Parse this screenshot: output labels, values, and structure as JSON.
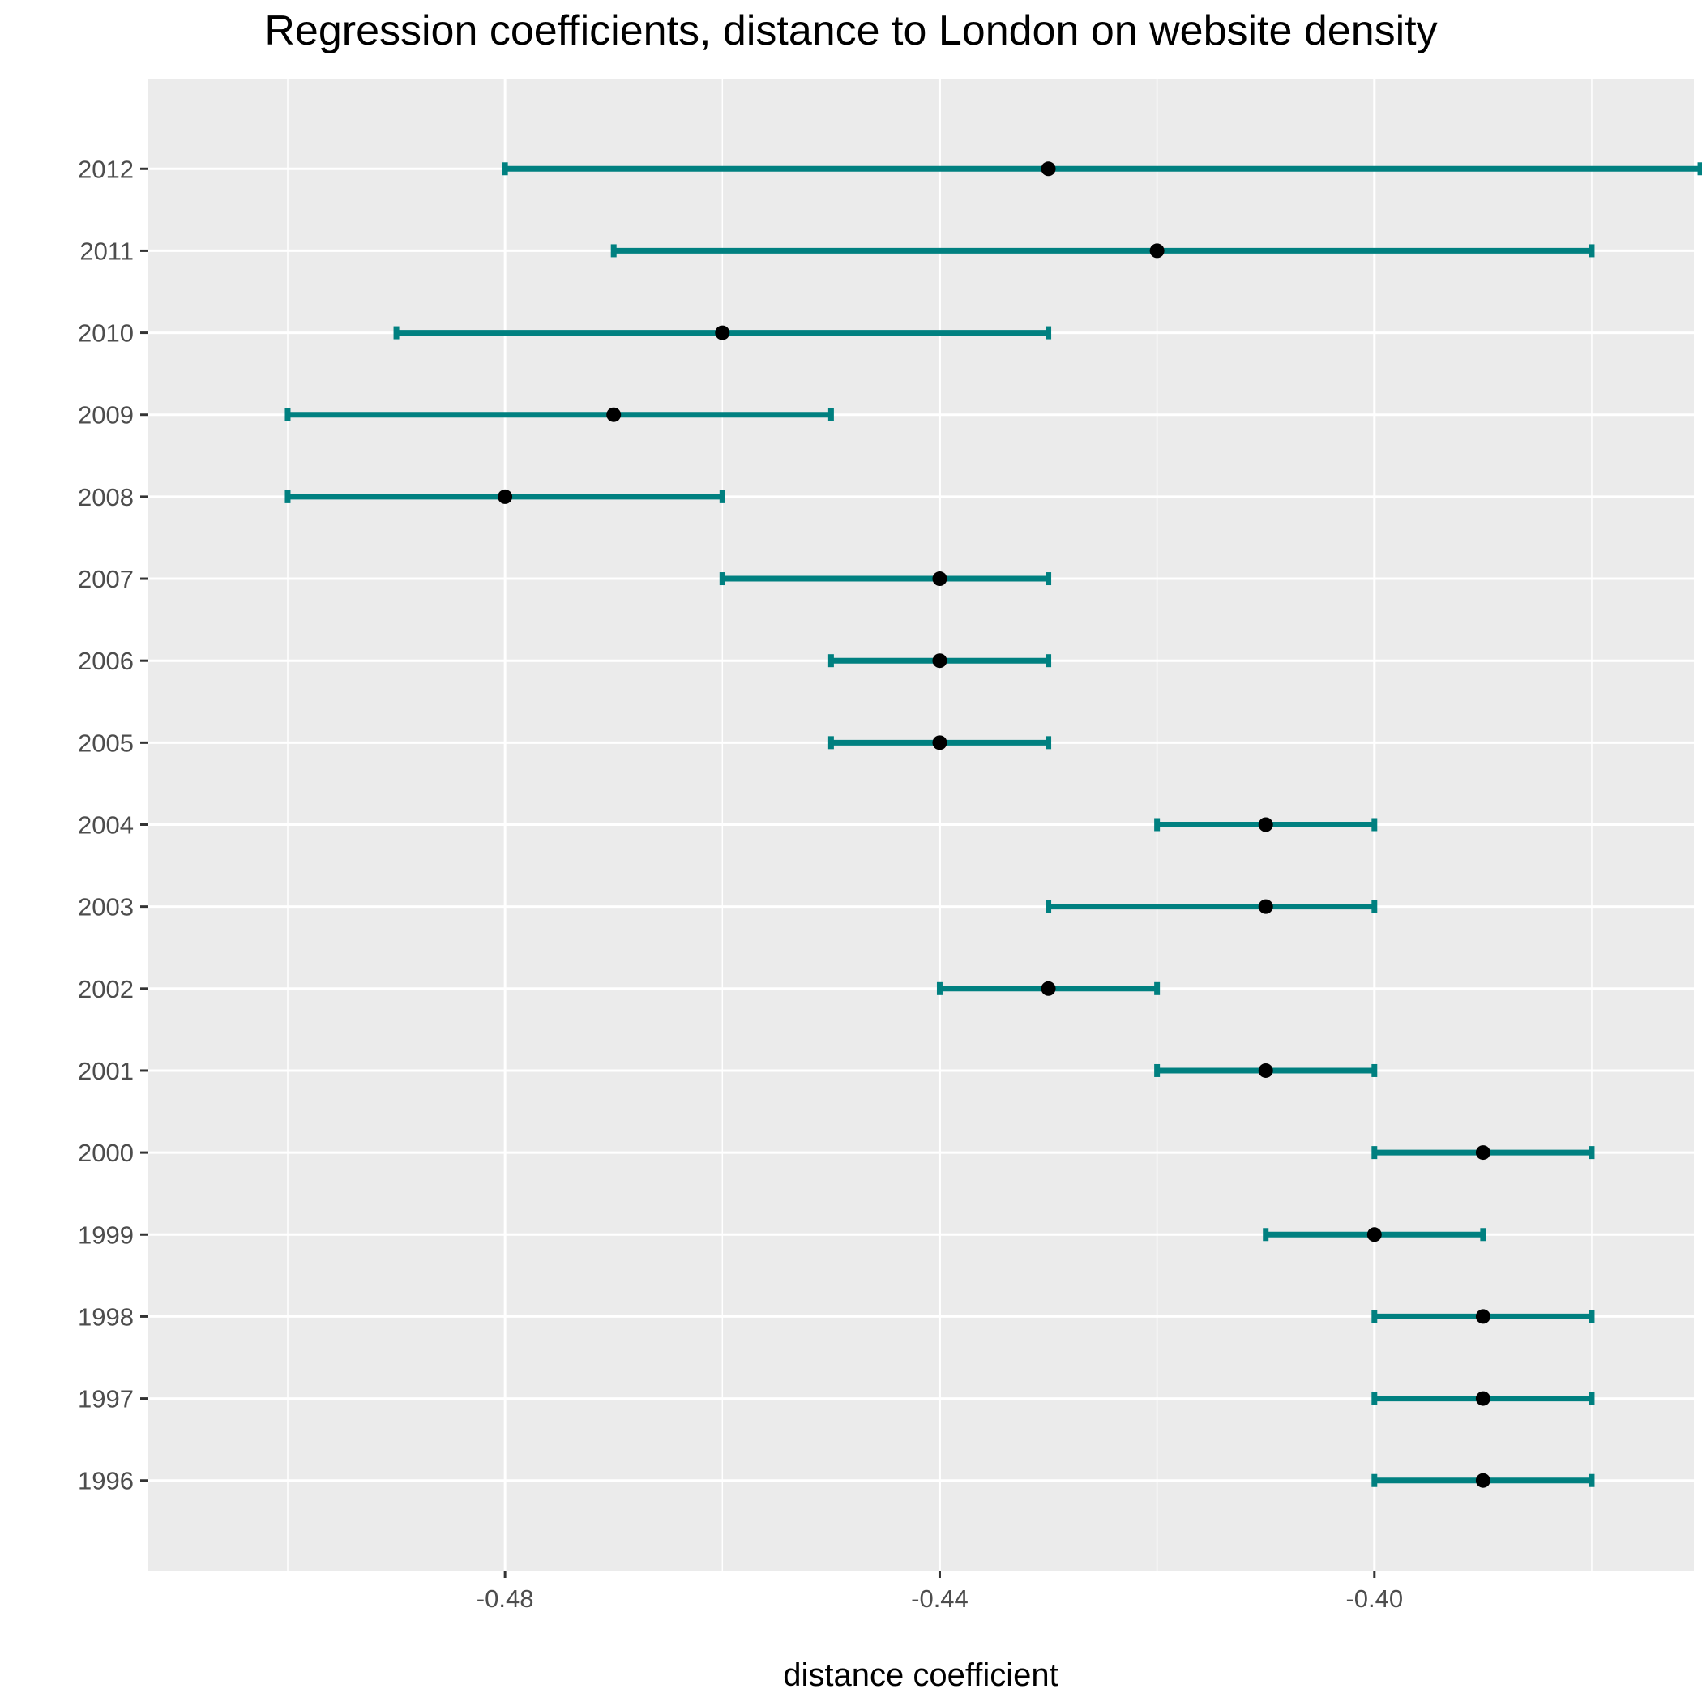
{
  "chart_data": {
    "type": "errorbar",
    "title": "Regression coefficients, distance to London on website density",
    "xlabel": "distance coefficient",
    "ylabel": "",
    "x_ticks": [
      -0.48,
      -0.44,
      -0.4
    ],
    "x_tick_labels": [
      "-0.48",
      "-0.44",
      "-0.40"
    ],
    "x_minor_ticks": [
      -0.5,
      -0.46,
      -0.42,
      -0.38
    ],
    "xlim": [
      -0.5129,
      -0.3706
    ],
    "categories": [
      "1996",
      "1997",
      "1998",
      "1999",
      "2000",
      "2001",
      "2002",
      "2003",
      "2004",
      "2005",
      "2006",
      "2007",
      "2008",
      "2009",
      "2010",
      "2011",
      "2012"
    ],
    "estimates": [
      -0.39,
      -0.39,
      -0.39,
      -0.4,
      -0.39,
      -0.41,
      -0.43,
      -0.41,
      -0.41,
      -0.44,
      -0.44,
      -0.44,
      -0.48,
      -0.47,
      -0.46,
      -0.42,
      -0.43
    ],
    "lower": [
      -0.4,
      -0.4,
      -0.4,
      -0.41,
      -0.4,
      -0.42,
      -0.44,
      -0.43,
      -0.42,
      -0.45,
      -0.45,
      -0.46,
      -0.5,
      -0.5,
      -0.49,
      -0.47,
      -0.48
    ],
    "upper": [
      -0.38,
      -0.38,
      -0.38,
      -0.39,
      -0.38,
      -0.4,
      -0.42,
      -0.4,
      -0.4,
      -0.43,
      -0.43,
      -0.43,
      -0.46,
      -0.45,
      -0.43,
      -0.38,
      -0.37
    ],
    "grid": true,
    "colors": {
      "errorbar": "#008080",
      "point": "#000000",
      "panel_background": "#EBEBEB",
      "gridline": "#FFFFFF",
      "axis_text": "#4D4D4D"
    }
  }
}
